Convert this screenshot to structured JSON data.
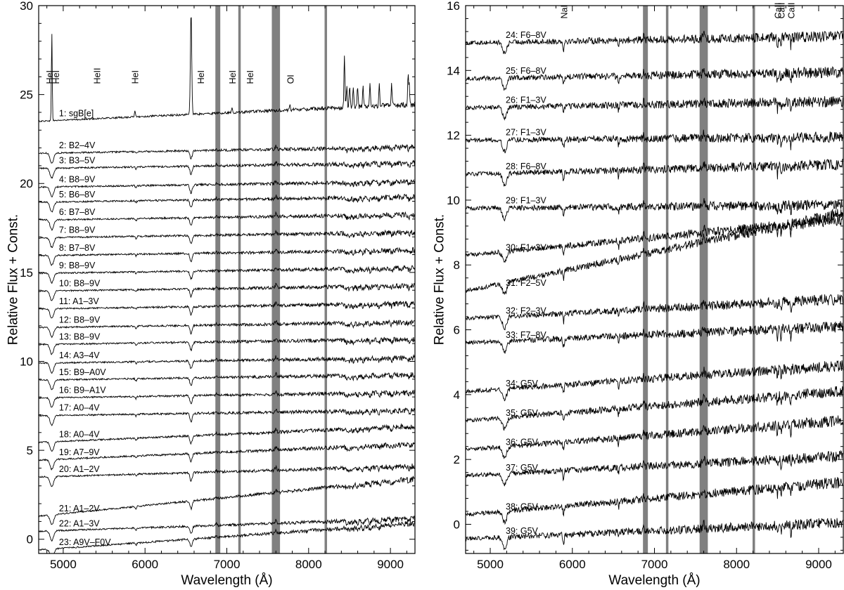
{
  "chart_data": [
    {
      "type": "line",
      "panel": "left",
      "xlabel": "Wavelength (Å)",
      "ylabel": "Relative Flux + Const.",
      "xlim": [
        4700,
        9300
      ],
      "ylim": [
        -0.8,
        30
      ],
      "xticks": [
        5000,
        6000,
        7000,
        8000,
        9000
      ],
      "yticks": [
        0,
        5,
        10,
        15,
        20,
        25,
        30
      ],
      "grid": false,
      "telluric_bands": [
        [
          6860,
          6920
        ],
        [
          7140,
          7170
        ],
        [
          7550,
          7650
        ],
        [
          8195,
          8225
        ]
      ],
      "line_labels": [
        {
          "text": "HeI",
          "x": 4830,
          "y": 25.6
        },
        {
          "text": "HeI",
          "x": 4905,
          "y": 25.6
        },
        {
          "text": "HeII",
          "x": 5410,
          "y": 25.6
        },
        {
          "text": "HeI",
          "x": 5875,
          "y": 25.6
        },
        {
          "text": "HeI",
          "x": 6678,
          "y": 25.6
        },
        {
          "text": "HeI",
          "x": 7065,
          "y": 25.6
        },
        {
          "text": "HeI",
          "x": 7281,
          "y": 25.6
        },
        {
          "text": "OI",
          "x": 7772,
          "y": 25.6
        }
      ],
      "series": [
        {
          "label": "1: sgB[e]",
          "label_x": 4880,
          "offset": 23.5,
          "slope": 0.95,
          "shape": "sgbe"
        },
        {
          "label": "2: B2–4V",
          "label_x": 4880,
          "offset": 21.7,
          "slope": 0.35,
          "shape": "hot"
        },
        {
          "label": "3: B3–5V",
          "label_x": 4880,
          "offset": 20.85,
          "slope": 0.3,
          "shape": "hot"
        },
        {
          "label": "4: B8–9V",
          "label_x": 4880,
          "offset": 19.8,
          "slope": 0.3,
          "shape": "hot"
        },
        {
          "label": "5: B6–8V",
          "label_x": 4880,
          "offset": 18.95,
          "slope": 0.3,
          "shape": "hot"
        },
        {
          "label": "6: B7–8V",
          "label_x": 4880,
          "offset": 17.95,
          "slope": 0.3,
          "shape": "hot"
        },
        {
          "label": "7: B8–9V",
          "label_x": 4880,
          "offset": 16.95,
          "slope": 0.3,
          "shape": "hot"
        },
        {
          "label": "8: B7–8V",
          "label_x": 4880,
          "offset": 15.95,
          "slope": 0.3,
          "shape": "hot"
        },
        {
          "label": "9: B8–9V",
          "label_x": 4880,
          "offset": 14.95,
          "slope": 0.3,
          "shape": "hot"
        },
        {
          "label": "10: B8–9V",
          "label_x": 4880,
          "offset": 13.95,
          "slope": 0.3,
          "shape": "hot"
        },
        {
          "label": "11: A1–3V",
          "label_x": 4880,
          "offset": 12.95,
          "slope": 0.3,
          "shape": "hot"
        },
        {
          "label": "12: B8–9V",
          "label_x": 4880,
          "offset": 11.9,
          "slope": 0.3,
          "shape": "hot"
        },
        {
          "label": "13: B8–9V",
          "label_x": 4880,
          "offset": 10.95,
          "slope": 0.3,
          "shape": "hot"
        },
        {
          "label": "14: A3–4V",
          "label_x": 4880,
          "offset": 9.9,
          "slope": 0.3,
          "shape": "hot"
        },
        {
          "label": "15: B9–A0V",
          "label_x": 4880,
          "offset": 8.95,
          "slope": 0.3,
          "shape": "hot"
        },
        {
          "label": "16: B9–A1V",
          "label_x": 4880,
          "offset": 7.95,
          "slope": 0.3,
          "shape": "hot"
        },
        {
          "label": "17: A0–4V",
          "label_x": 4880,
          "offset": 6.95,
          "slope": 0.3,
          "shape": "hot"
        },
        {
          "label": "18: A0–4V",
          "label_x": 4880,
          "offset": 5.45,
          "slope": 0.9,
          "shape": "hot"
        },
        {
          "label": "19: A7–9V",
          "label_x": 4880,
          "offset": 4.45,
          "slope": 0.9,
          "shape": "hot"
        },
        {
          "label": "20: A1–2V",
          "label_x": 4880,
          "offset": 3.5,
          "slope": 0.6,
          "shape": "hot"
        },
        {
          "label": "21: A1–2V",
          "label_x": 4880,
          "offset": 1.3,
          "slope": 2.1,
          "shape": "hot"
        },
        {
          "label": "22: A1–3V",
          "label_x": 4880,
          "offset": 0.45,
          "slope": 0.7,
          "shape": "hot"
        },
        {
          "label": "23: A9V–F0V",
          "label_x": 4880,
          "offset": -0.6,
          "slope": 1.5,
          "shape": "hot"
        }
      ]
    },
    {
      "type": "line",
      "panel": "right",
      "xlabel": "Wavelength (Å)",
      "ylabel": "Relative Flux + Const.",
      "xlim": [
        4700,
        9300
      ],
      "ylim": [
        -0.9,
        16
      ],
      "xticks": [
        5000,
        6000,
        7000,
        8000,
        9000
      ],
      "yticks": [
        0,
        2,
        4,
        6,
        8,
        10,
        12,
        14,
        16
      ],
      "grid": false,
      "telluric_bands": [
        [
          6860,
          6920
        ],
        [
          7140,
          7170
        ],
        [
          7550,
          7650
        ],
        [
          8195,
          8225
        ]
      ],
      "line_labels": [
        {
          "text": "NaI",
          "x": 5893,
          "y": 15.6
        },
        {
          "text": "CaII",
          "x": 8498,
          "y": 15.6
        },
        {
          "text": "CaII",
          "x": 8542,
          "y": 15.6
        },
        {
          "text": "CaII",
          "x": 8662,
          "y": 15.6
        }
      ],
      "series": [
        {
          "label": "24: F6–8V",
          "label_x": 5120,
          "offset": 14.85,
          "slope": 0.2,
          "shape": "cool"
        },
        {
          "label": "25: F6–8V",
          "label_x": 5120,
          "offset": 13.75,
          "slope": 0.2,
          "shape": "cool"
        },
        {
          "label": "26: F1–3V",
          "label_x": 5120,
          "offset": 12.85,
          "slope": 0.2,
          "shape": "cool"
        },
        {
          "label": "27: F1–3V",
          "label_x": 5120,
          "offset": 11.85,
          "slope": 0.1,
          "shape": "cool"
        },
        {
          "label": "28: F6–8V",
          "label_x": 5120,
          "offset": 10.8,
          "slope": 0.3,
          "shape": "cool"
        },
        {
          "label": "29: F1–3V",
          "label_x": 5120,
          "offset": 9.75,
          "slope": 0.1,
          "shape": "cool"
        },
        {
          "label": "30: F1–3V",
          "label_x": 5120,
          "offset": 8.3,
          "slope": 1.1,
          "shape": "cool"
        },
        {
          "label": "31: F2–5V",
          "label_x": 5120,
          "offset": 7.2,
          "slope": 2.4,
          "shape": "cool"
        },
        {
          "label": "32: F2–3V",
          "label_x": 5120,
          "offset": 6.35,
          "slope": 0.6,
          "shape": "cool"
        },
        {
          "label": "33: F7–8V",
          "label_x": 5120,
          "offset": 5.6,
          "slope": 0.5,
          "shape": "cool"
        },
        {
          "label": "34: G5V",
          "label_x": 5120,
          "offset": 4.1,
          "slope": 0.8,
          "shape": "cool"
        },
        {
          "label": "35: G5V",
          "label_x": 5120,
          "offset": 3.2,
          "slope": 0.9,
          "shape": "cool"
        },
        {
          "label": "36: G5V",
          "label_x": 5120,
          "offset": 2.3,
          "slope": 0.9,
          "shape": "cool"
        },
        {
          "label": "37: G5V",
          "label_x": 5120,
          "offset": 1.5,
          "slope": 0.6,
          "shape": "cool"
        },
        {
          "label": "38: G5V",
          "label_x": 5120,
          "offset": 0.3,
          "slope": 1.0,
          "shape": "cool"
        },
        {
          "label": "39: G5V",
          "label_x": 5120,
          "offset": -0.45,
          "slope": 0.5,
          "shape": "cool"
        }
      ]
    }
  ]
}
